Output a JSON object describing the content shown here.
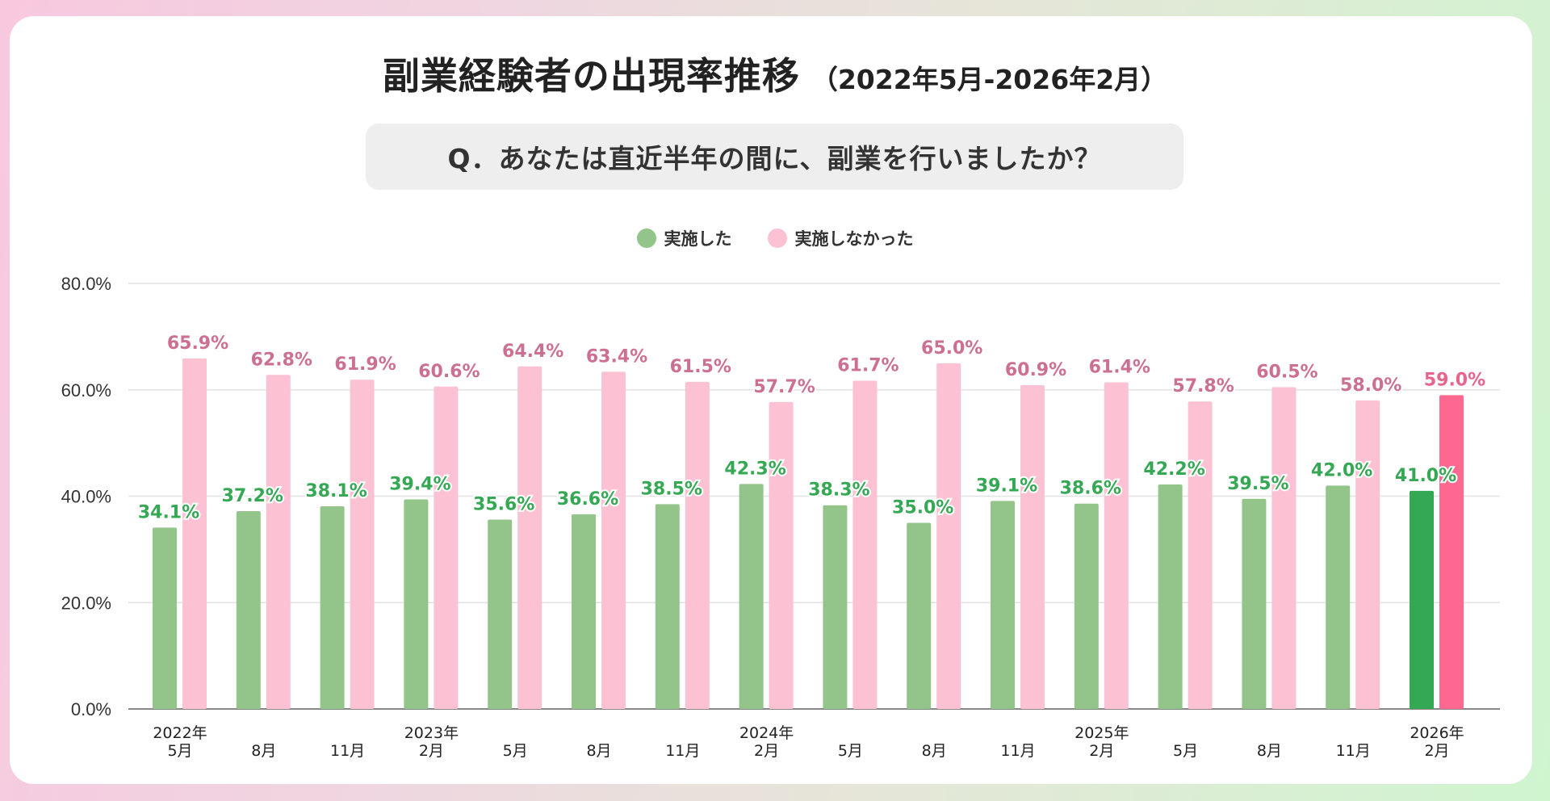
{
  "title": "副業経験者の出現率推移",
  "subtitle": "（2022年5月-2026年2月）",
  "question": "Q．あなたは直近半年の間に、副業を行いましたか？",
  "colors": {
    "series1": "#93c58a",
    "series2": "#fcc2d4",
    "series1_latest": "#34a853",
    "series2_latest": "#fe6790",
    "label1": "#34a853",
    "label2": "#cc6f93",
    "label2_latest": "#e8648c"
  },
  "chart_data": {
    "type": "bar",
    "title": "副業経験者の出現率推移",
    "categories": [
      [
        "2022年",
        "5月"
      ],
      [
        "8月"
      ],
      [
        "11月"
      ],
      [
        "2023年",
        "2月"
      ],
      [
        "5月"
      ],
      [
        "8月"
      ],
      [
        "11月"
      ],
      [
        "2024年",
        "2月"
      ],
      [
        "5月"
      ],
      [
        "8月"
      ],
      [
        "11月"
      ],
      [
        "2025年",
        "2月"
      ],
      [
        "5月"
      ],
      [
        "8月"
      ],
      [
        "11月"
      ],
      [
        "2026年",
        "2月"
      ]
    ],
    "series": [
      {
        "name": "実施した",
        "values": [
          34.1,
          37.2,
          38.1,
          39.4,
          35.6,
          36.6,
          38.5,
          42.3,
          38.3,
          35.0,
          39.1,
          38.6,
          42.2,
          39.5,
          42.0,
          41.0
        ]
      },
      {
        "name": "実施しなかった",
        "values": [
          65.9,
          62.8,
          61.9,
          60.6,
          64.4,
          63.4,
          61.5,
          57.7,
          61.7,
          65.0,
          60.9,
          61.4,
          57.8,
          60.5,
          58.0,
          59.0
        ]
      }
    ],
    "ylim": [
      0,
      80
    ],
    "yticks": [
      "0.0%",
      "20.0%",
      "40.0%",
      "60.0%",
      "80.0%"
    ],
    "ytick_values": [
      0,
      20,
      40,
      60,
      80
    ],
    "grid": true,
    "legend": "top-center",
    "xlabel": "",
    "ylabel": ""
  }
}
